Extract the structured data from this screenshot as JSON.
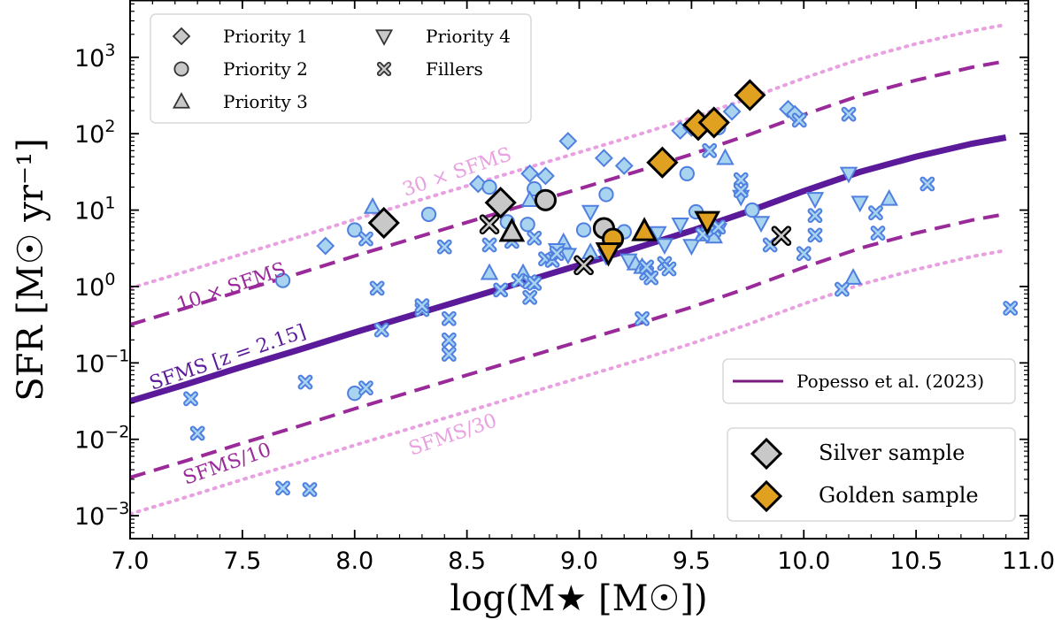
{
  "chart_data": {
    "type": "scatter",
    "xlabel": "log(M★ [M☉])",
    "ylabel": "SFR [M☉ yr⁻¹]",
    "xlim": [
      7.0,
      11.0
    ],
    "ylim_log10": [
      -3.3,
      3.75
    ],
    "yscale": "log",
    "x_ticks": [
      7.0,
      7.5,
      8.0,
      8.5,
      9.0,
      9.5,
      10.0,
      10.5,
      11.0
    ],
    "x_tick_labels": [
      "7.0",
      "7.5",
      "8.0",
      "8.5",
      "9.0",
      "9.5",
      "10.0",
      "10.5",
      "11.0"
    ],
    "y_ticks_log10": [
      -3,
      -2,
      -1,
      0,
      1,
      2,
      3
    ],
    "y_tick_bases": [
      "10",
      "10",
      "10",
      "10",
      "10",
      "10",
      "10"
    ],
    "y_tick_exps": [
      "−3",
      "−2",
      "−1",
      "0",
      "1",
      "2",
      "3"
    ],
    "colors": {
      "blue_edge": "#4f7fe0",
      "blue_fill": "#a9d4f0",
      "silver_fill": "#c8c8c8",
      "gold_fill": "#e0a020",
      "sfms_main": "#5a1a9a",
      "sfms_dashed": "#9a2a9a",
      "sfms_dotted": "#e8a0e0",
      "popesso_line": "#7a1a80"
    },
    "sfms_model": {
      "description": "Main-sequence curve, SFMS at z = 2.15 (Popesso et al. 2023)",
      "x": [
        7.0,
        7.25,
        7.5,
        7.75,
        8.0,
        8.25,
        8.5,
        8.75,
        9.0,
        9.25,
        9.5,
        9.75,
        10.0,
        10.25,
        10.5,
        10.75,
        10.9
      ],
      "log_sfr": [
        -1.5,
        -1.28,
        -1.05,
        -0.83,
        -0.6,
        -0.38,
        -0.16,
        0.06,
        0.28,
        0.5,
        0.73,
        0.98,
        1.25,
        1.5,
        1.7,
        1.87,
        1.95
      ]
    },
    "curves": [
      {
        "name": "30 × SFMS",
        "offset_dex": 1.477,
        "style": "dotted"
      },
      {
        "name": "10 × SFMS",
        "offset_dex": 1.0,
        "style": "dashed"
      },
      {
        "name": "SFMS [z = 2.15]",
        "offset_dex": 0.0,
        "style": "solid"
      },
      {
        "name": "SFMS/10",
        "offset_dex": -1.0,
        "style": "dashed"
      },
      {
        "name": "SFMS/30",
        "offset_dex": -1.477,
        "style": "dotted"
      }
    ],
    "curve_labels": {
      "x30": "30 × SFMS",
      "x10": "10 × SFMS",
      "main": "SFMS [z = 2.15]",
      "d10": "SFMS/10",
      "d30": "SFMS/30"
    },
    "legend_markers": [
      {
        "label": "Priority 1",
        "marker": "diamond"
      },
      {
        "label": "Priority 2",
        "marker": "circle"
      },
      {
        "label": "Priority 3",
        "marker": "triangle-up"
      },
      {
        "label": "Priority 4",
        "marker": "triangle-down"
      },
      {
        "label": "Fillers",
        "marker": "x"
      }
    ],
    "legend_line": {
      "label": "Popesso et al. (2023)"
    },
    "legend_samples": [
      {
        "label": "Silver sample",
        "marker": "diamond",
        "fill": "silver"
      },
      {
        "label": "Golden sample",
        "marker": "diamond",
        "fill": "gold"
      }
    ],
    "series": [
      {
        "name": "Priority 1",
        "marker": "diamond",
        "points": [
          [
            7.87,
            3.4
          ],
          [
            8.55,
            22
          ],
          [
            8.78,
            30
          ],
          [
            8.85,
            28
          ],
          [
            8.95,
            80
          ],
          [
            9.11,
            48
          ],
          [
            9.2,
            38
          ],
          [
            9.45,
            110
          ],
          [
            9.5,
            120
          ],
          [
            9.68,
            195
          ],
          [
            9.93,
            210
          ],
          [
            9.96,
            180
          ]
        ]
      },
      {
        "name": "Priority 2",
        "marker": "circle",
        "points": [
          [
            7.68,
            1.2
          ],
          [
            8.0,
            5.5
          ],
          [
            8.0,
            0.04
          ],
          [
            8.33,
            8.8
          ],
          [
            8.6,
            20
          ],
          [
            8.68,
            7
          ],
          [
            8.77,
            6.5
          ],
          [
            8.8,
            19
          ],
          [
            9.02,
            5.5
          ],
          [
            9.12,
            16
          ],
          [
            9.2,
            5.2
          ],
          [
            9.48,
            30
          ],
          [
            9.52,
            9.5
          ],
          [
            9.62,
            120
          ],
          [
            9.77,
            10
          ]
        ]
      },
      {
        "name": "Priority 3",
        "marker": "triangle-up",
        "points": [
          [
            8.08,
            11
          ],
          [
            8.6,
            1.5
          ],
          [
            8.75,
            1.5
          ],
          [
            8.78,
            13.5
          ],
          [
            8.93,
            3.8
          ],
          [
            9.05,
            2.8
          ],
          [
            9.25,
            2.0
          ],
          [
            9.28,
            1.8
          ],
          [
            9.55,
            4.8
          ],
          [
            9.6,
            4.5
          ],
          [
            9.65,
            48
          ],
          [
            10.22,
            1.3
          ],
          [
            10.38,
            14
          ]
        ]
      },
      {
        "name": "Priority 4",
        "marker": "triangle-down",
        "points": [
          [
            8.9,
            3.0
          ],
          [
            8.95,
            2.6
          ],
          [
            9.05,
            9.5
          ],
          [
            9.12,
            2.5
          ],
          [
            9.22,
            2.2
          ],
          [
            9.35,
            5.0
          ],
          [
            9.38,
            3.5
          ],
          [
            9.45,
            6.5
          ],
          [
            9.5,
            3.4
          ],
          [
            9.62,
            5.5
          ],
          [
            9.72,
            15
          ],
          [
            9.81,
            6.8
          ],
          [
            10.05,
            14
          ],
          [
            10.25,
            12.5
          ],
          [
            10.2,
            30
          ]
        ]
      },
      {
        "name": "Fillers",
        "marker": "x",
        "points": [
          [
            7.27,
            0.034
          ],
          [
            7.3,
            0.012
          ],
          [
            7.68,
            0.0023
          ],
          [
            7.78,
            0.056
          ],
          [
            7.8,
            0.0022
          ],
          [
            8.05,
            0.047
          ],
          [
            8.05,
            4.2
          ],
          [
            8.1,
            0.95
          ],
          [
            8.12,
            0.27
          ],
          [
            8.3,
            0.5
          ],
          [
            8.3,
            0.56
          ],
          [
            8.4,
            3.3
          ],
          [
            8.42,
            0.38
          ],
          [
            8.42,
            0.2
          ],
          [
            8.42,
            0.13
          ],
          [
            8.6,
            3.5
          ],
          [
            8.65,
            0.9
          ],
          [
            8.7,
            3.9
          ],
          [
            8.73,
            1.2
          ],
          [
            8.78,
            1.15
          ],
          [
            8.78,
            0.72
          ],
          [
            8.8,
            1.1
          ],
          [
            8.8,
            4.3
          ],
          [
            8.85,
            2.3
          ],
          [
            8.88,
            2.2
          ],
          [
            8.9,
            2.7
          ],
          [
            9.28,
            0.38
          ],
          [
            9.3,
            1.5
          ],
          [
            9.3,
            1.8
          ],
          [
            9.32,
            1.3
          ],
          [
            9.38,
            2.0
          ],
          [
            9.4,
            1.7
          ],
          [
            9.55,
            4.8
          ],
          [
            9.6,
            5.5
          ],
          [
            9.62,
            6.0
          ],
          [
            9.72,
            25
          ],
          [
            9.72,
            18
          ],
          [
            9.85,
            3.5
          ],
          [
            10.05,
            8.5
          ],
          [
            10.05,
            4.7
          ],
          [
            10.0,
            2.7
          ],
          [
            10.17,
            0.92
          ],
          [
            10.2,
            180
          ],
          [
            10.32,
            9.2
          ],
          [
            10.33,
            5.0
          ],
          [
            10.55,
            22
          ],
          [
            10.92,
            0.52
          ],
          [
            9.98,
            150
          ],
          [
            9.58,
            60
          ]
        ]
      },
      {
        "name": "Silver sample",
        "marker": "mixed",
        "points": [
          [
            8.13,
            6.8,
            "diamond"
          ],
          [
            8.65,
            12.5,
            "diamond"
          ],
          [
            8.6,
            6.5,
            "x"
          ],
          [
            8.7,
            5.2,
            "triangle-up"
          ],
          [
            8.85,
            13.5,
            "circle"
          ],
          [
            9.02,
            1.9,
            "x"
          ],
          [
            9.11,
            5.8,
            "circle"
          ],
          [
            9.9,
            4.6,
            "x"
          ]
        ]
      },
      {
        "name": "Golden sample",
        "marker": "mixed",
        "points": [
          [
            9.37,
            42,
            "diamond"
          ],
          [
            9.53,
            130,
            "diamond"
          ],
          [
            9.6,
            140,
            "diamond"
          ],
          [
            9.76,
            320,
            "diamond"
          ],
          [
            9.15,
            4.2,
            "circle"
          ],
          [
            9.29,
            5.3,
            "triangle-up"
          ],
          [
            9.13,
            2.8,
            "triangle-down"
          ],
          [
            9.57,
            7.2,
            "triangle-down"
          ]
        ]
      }
    ]
  }
}
